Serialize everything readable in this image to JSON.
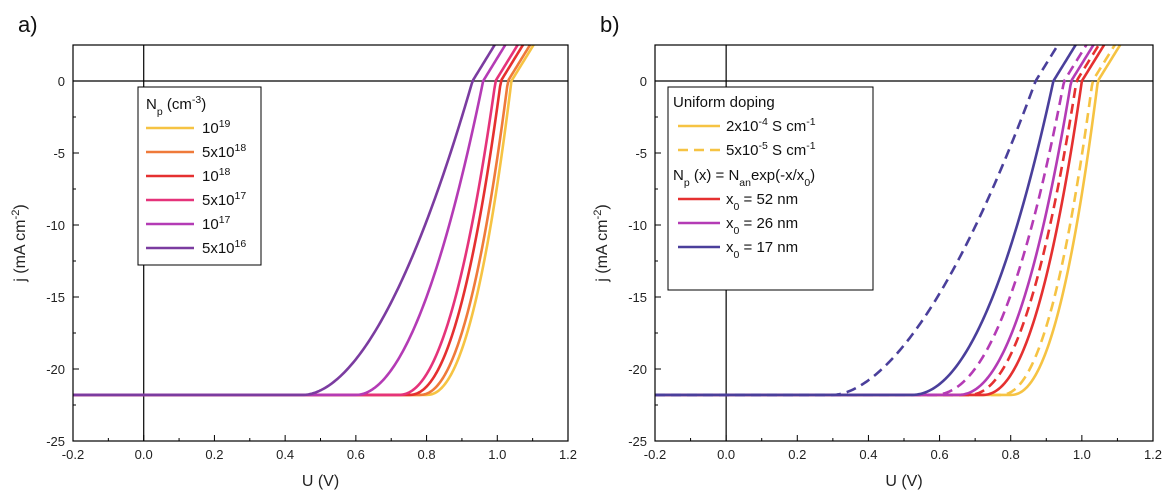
{
  "chart_data": [
    {
      "type": "line",
      "panel_label": "a)",
      "xlabel": "U (V)",
      "ylabel": "j (mA cm⁻²)",
      "xlim": [
        -0.2,
        1.2
      ],
      "ylim": [
        -25,
        2.5
      ],
      "xticks": [
        -0.2,
        0.0,
        0.2,
        0.4,
        0.6,
        0.8,
        1.0,
        1.2
      ],
      "xtick_labels": [
        "-0.2",
        "0.0",
        "0.2",
        "0.4",
        "0.6",
        "0.8",
        "1.0",
        "1.2"
      ],
      "yticks": [
        0,
        -5,
        -10,
        -15,
        -20,
        -25
      ],
      "ytick_labels": [
        "0",
        "-5",
        "-10",
        "-15",
        "-20",
        "-25"
      ],
      "legend": {
        "title": "Nₚ (cm⁻³)",
        "placement": "upper-left"
      },
      "series": [
        {
          "name": "10¹⁹",
          "color": "#F6C343",
          "dash": "solid",
          "jsc": -21.8,
          "voc": 1.04,
          "vbend": 0.8,
          "k": 1
        },
        {
          "name": "5x10¹⁸",
          "color": "#EF7A3A",
          "dash": "solid",
          "jsc": -21.8,
          "voc": 1.03,
          "vbend": 0.78,
          "k": 1
        },
        {
          "name": "10¹⁸",
          "color": "#E53030",
          "dash": "solid",
          "jsc": -21.8,
          "voc": 1.01,
          "vbend": 0.75,
          "k": 1
        },
        {
          "name": "5x10¹⁷",
          "color": "#E5337A",
          "dash": "solid",
          "jsc": -21.8,
          "voc": 0.995,
          "vbend": 0.72,
          "k": 1
        },
        {
          "name": "10¹⁷",
          "color": "#B43BB5",
          "dash": "solid",
          "jsc": -21.8,
          "voc": 0.96,
          "vbend": 0.6,
          "k": 0.9
        },
        {
          "name": "5x10¹⁶",
          "color": "#7B3CA0",
          "dash": "solid",
          "jsc": -21.8,
          "voc": 0.93,
          "vbend": 0.45,
          "k": 0.85
        }
      ]
    },
    {
      "type": "line",
      "panel_label": "b)",
      "xlabel": "U (V)",
      "ylabel": "j (mA cm⁻²)",
      "xlim": [
        -0.2,
        1.2
      ],
      "ylim": [
        -25,
        2.5
      ],
      "xticks": [
        -0.2,
        0.0,
        0.2,
        0.4,
        0.6,
        0.8,
        1.0,
        1.2
      ],
      "xtick_labels": [
        "-0.2",
        "0.0",
        "0.2",
        "0.4",
        "0.6",
        "0.8",
        "1.0",
        "1.2"
      ],
      "yticks": [
        0,
        -5,
        -10,
        -15,
        -20,
        -25
      ],
      "ytick_labels": [
        "0",
        "-5",
        "-10",
        "-15",
        "-20",
        "-25"
      ],
      "legend": {
        "placement": "upper-left",
        "heading1": "Uniform doping",
        "heading2": "Nₚ (x) = Nₐₙexp(-x/x₀)"
      },
      "series": [
        {
          "name": "2x10⁻⁴ S cm⁻¹",
          "color": "#F6C343",
          "dash": "solid",
          "jsc": -21.8,
          "voc": 1.045,
          "vbend": 0.8,
          "k": 1
        },
        {
          "name": "5x10⁻⁵ S cm⁻¹",
          "color": "#F6C343",
          "dash": "dashed",
          "jsc": -21.8,
          "voc": 1.03,
          "vbend": 0.77,
          "k": 1
        },
        {
          "name": "x₀ = 52 nm",
          "color": "#E53030",
          "dash": "solid",
          "jsc": -21.8,
          "voc": 1.0,
          "vbend": 0.72,
          "k": 1
        },
        {
          "name": "",
          "color": "#E53030",
          "dash": "dashed",
          "jsc": -21.8,
          "voc": 0.985,
          "vbend": 0.68,
          "k": 1
        },
        {
          "name": "x₀ = 26 nm",
          "color": "#B43BB5",
          "dash": "solid",
          "jsc": -21.8,
          "voc": 0.97,
          "vbend": 0.65,
          "k": 1
        },
        {
          "name": "",
          "color": "#B43BB5",
          "dash": "dashed",
          "jsc": -21.8,
          "voc": 0.95,
          "vbend": 0.58,
          "k": 1
        },
        {
          "name": "x₀ = 17 nm",
          "color": "#4A3F9B",
          "dash": "solid",
          "jsc": -21.8,
          "voc": 0.92,
          "vbend": 0.52,
          "k": 0.95
        },
        {
          "name": "",
          "color": "#4A3F9B",
          "dash": "dashed",
          "jsc": -21.8,
          "voc": 0.87,
          "vbend": 0.3,
          "k": 0.8
        }
      ]
    }
  ]
}
